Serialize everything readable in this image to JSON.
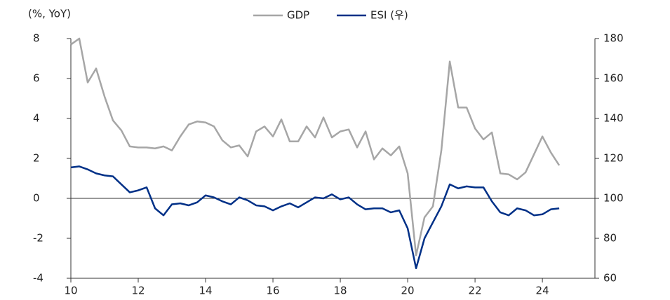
{
  "chart_data": {
    "type": "line",
    "y_axis_label": "(%, YoY)",
    "x": [
      10,
      10.25,
      10.5,
      10.75,
      11,
      11.25,
      11.5,
      11.75,
      12,
      12.25,
      12.5,
      12.75,
      13,
      13.25,
      13.5,
      13.75,
      14,
      14.25,
      14.5,
      14.75,
      15,
      15.25,
      15.5,
      15.75,
      16,
      16.25,
      16.5,
      16.75,
      17,
      17.25,
      17.5,
      17.75,
      18,
      18.25,
      18.5,
      18.75,
      19,
      19.25,
      19.5,
      19.75,
      20,
      20.25,
      20.5,
      20.75,
      21,
      21.25,
      21.5,
      21.75,
      22,
      22.25,
      22.5,
      22.75,
      23,
      23.25,
      23.5,
      23.75,
      24,
      24.25,
      24.5
    ],
    "series": [
      {
        "name": "GDP",
        "color": "#a6a6a6",
        "axis": "y",
        "values": [
          7.7,
          8.0,
          5.8,
          6.5,
          5.1,
          3.9,
          3.4,
          2.6,
          2.55,
          2.55,
          2.5,
          2.6,
          2.4,
          3.1,
          3.7,
          3.85,
          3.8,
          3.6,
          2.9,
          2.55,
          2.65,
          2.1,
          3.35,
          3.6,
          3.1,
          3.95,
          2.85,
          2.85,
          3.6,
          3.05,
          4.05,
          3.05,
          3.35,
          3.45,
          2.55,
          3.35,
          1.95,
          2.5,
          2.15,
          2.6,
          1.25,
          -2.85,
          -0.95,
          -0.4,
          2.4,
          6.85,
          4.55,
          4.55,
          3.5,
          2.95,
          3.3,
          1.25,
          1.2,
          0.95,
          1.3,
          2.2,
          3.1,
          2.3,
          1.65
        ]
      },
      {
        "name": "ESI (우)",
        "color": "#003087",
        "axis": "y2",
        "values": [
          115.5,
          116,
          114.5,
          112.5,
          111.5,
          111,
          107,
          103,
          104,
          105.5,
          95,
          91.5,
          97,
          97.5,
          96.5,
          98,
          101.5,
          100.5,
          98.5,
          97,
          100.5,
          99,
          96.5,
          96,
          94,
          96,
          97.5,
          95.5,
          98,
          100.5,
          100,
          102,
          99.5,
          100.5,
          97,
          94.5,
          95,
          95,
          93,
          94,
          85,
          65,
          80,
          88,
          96,
          107,
          105,
          106,
          105.5,
          105.5,
          98.5,
          93,
          91.5,
          95,
          94,
          91.5,
          92,
          94.5,
          95
        ]
      }
    ],
    "xlim": [
      10,
      25.56
    ],
    "xticks": [
      10,
      12,
      14,
      16,
      18,
      20,
      22,
      24
    ],
    "ylim": [
      -4,
      8
    ],
    "yticks": [
      -4,
      -2,
      0,
      2,
      4,
      6,
      8
    ],
    "y2lim": [
      60,
      180
    ],
    "y2ticks": [
      60,
      80,
      100,
      120,
      140,
      160,
      180
    ],
    "zero_line": true,
    "legend": "top"
  }
}
